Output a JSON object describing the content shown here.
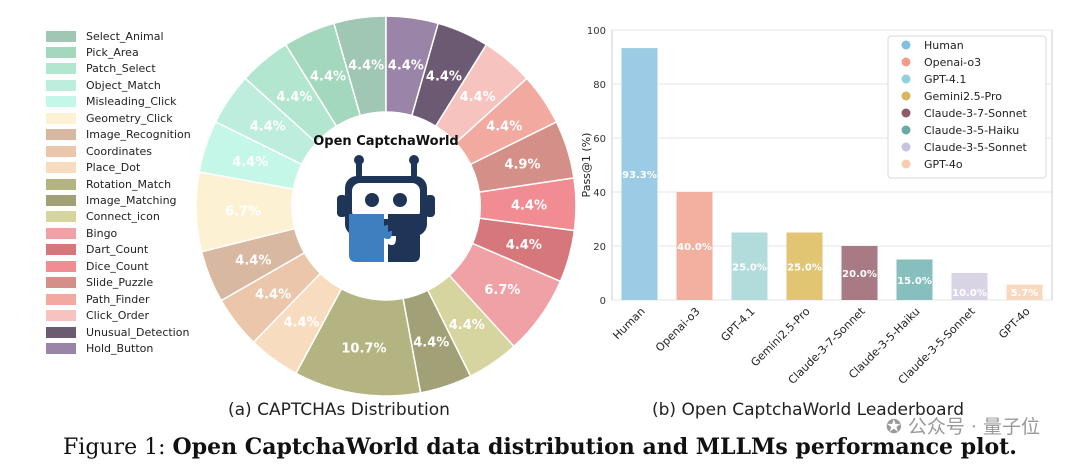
{
  "colors": {
    "donut_label": "#ffffff",
    "center_fill": "#ffffff",
    "robot_dark": "#1f3557",
    "robot_blue": "#3f7fbf"
  },
  "chart_data": [
    {
      "type": "pie",
      "variant": "donut",
      "title": "",
      "center_label": "Open CaptchaWorld",
      "legend_position": "left",
      "series": [
        {
          "name": "Select_Animal",
          "value": 4.4,
          "color": "#9fc7b3"
        },
        {
          "name": "Pick_Area",
          "value": 4.4,
          "color": "#a3d8bd"
        },
        {
          "name": "Patch_Select",
          "value": 4.4,
          "color": "#b3e6cf"
        },
        {
          "name": "Object_Match",
          "value": 4.4,
          "color": "#bdeedd"
        },
        {
          "name": "Misleading_Click",
          "value": 4.4,
          "color": "#c4f7e8"
        },
        {
          "name": "Geometry_Click",
          "value": 6.7,
          "color": "#fdf1d3"
        },
        {
          "name": "Image_Recognition",
          "value": 4.4,
          "color": "#d9b8a2"
        },
        {
          "name": "Coordinates",
          "value": 4.4,
          "color": "#ebc6ab"
        },
        {
          "name": "Place_Dot",
          "value": 4.4,
          "color": "#f8dcc0"
        },
        {
          "name": "Rotation_Match",
          "value": 10.7,
          "color": "#b4b382"
        },
        {
          "name": "Image_Matching",
          "value": 4.4,
          "color": "#a1a077"
        },
        {
          "name": "Connect_icon",
          "value": 4.4,
          "color": "#d6d59f"
        },
        {
          "name": "Bingo",
          "value": 6.7,
          "color": "#f0a1a5"
        },
        {
          "name": "Dart_Count",
          "value": 4.4,
          "color": "#d6777c"
        },
        {
          "name": "Dice_Count",
          "value": 4.4,
          "color": "#f08c92"
        },
        {
          "name": "Slide_Puzzle",
          "value": 4.9,
          "color": "#d49088"
        },
        {
          "name": "Path_Finder",
          "value": 4.4,
          "color": "#f2aaa0"
        },
        {
          "name": "Click_Order",
          "value": 4.4,
          "color": "#f6c3be"
        },
        {
          "name": "Unusual_Detection",
          "value": 4.4,
          "color": "#6c5a72"
        },
        {
          "name": "Hold_Button",
          "value": 4.4,
          "color": "#9a84a8"
        }
      ],
      "value_suffix": "%",
      "caption": "(a) CAPTCHAs Distribution"
    },
    {
      "type": "bar",
      "title": "",
      "xlabel": "",
      "ylabel": "Pass@1 (%)",
      "ylim": [
        0,
        100
      ],
      "yticks": [
        0,
        20,
        40,
        60,
        80,
        100
      ],
      "grid": true,
      "legend_position": "top-right",
      "categories": [
        "Human",
        "Openai-o3",
        "GPT-4.1",
        "Gemini2.5-Pro",
        "Claude-3-7-Sonnet",
        "Claude-3-5-Haiku",
        "Claude-3-5-Sonnet",
        "GPT-4o"
      ],
      "values": [
        93.3,
        40.0,
        25.0,
        25.0,
        20.0,
        15.0,
        10.0,
        5.7
      ],
      "value_labels": [
        "93.3%",
        "40.0%",
        "25.0%",
        "25.0%",
        "20.0%",
        "15.0%",
        "10.0%",
        "5.7%"
      ],
      "colors": [
        "#9ccbe6",
        "#f3b0a0",
        "#b2dcdc",
        "#e1c572",
        "#a87a84",
        "#86bfbd",
        "#d9d3e6",
        "#f9d8c0"
      ],
      "legend_colors": [
        "#7fbfe0",
        "#ef9e8a",
        "#8fd0dc",
        "#d9b65a",
        "#8f5a66",
        "#6aa9a6",
        "#c8c2e0",
        "#f7cfb0"
      ],
      "caption": "(b) Open CaptchaWorld Leaderboard"
    }
  ],
  "figure": {
    "label": "Figure 1:",
    "caption_bold": "Open CaptchaWorld data distribution and MLLMs performance plot."
  },
  "watermark": "公众号 · 量子位",
  "watermark_icon": "wechat-icon"
}
